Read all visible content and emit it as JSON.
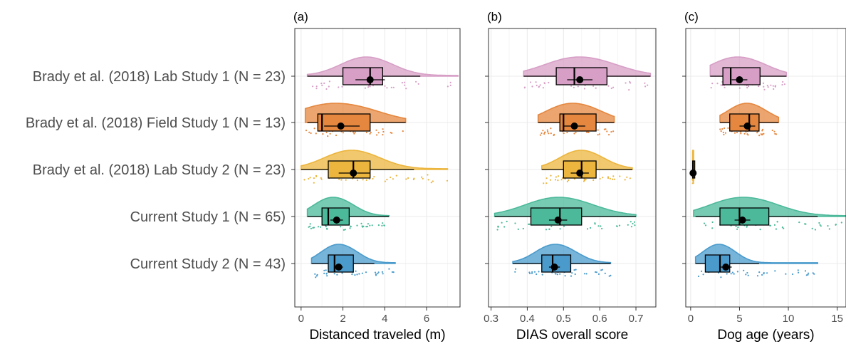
{
  "chart_data": {
    "type": "raincloud",
    "rows": [
      {
        "label": "Brady et al. (2018) Lab Study 1 (N = 23)",
        "color": "#d79fc6"
      },
      {
        "label": "Brady et al. (2018) Field Study 1 (N = 13)",
        "color": "#e5873f"
      },
      {
        "label": "Brady et al. (2018) Lab Study 2 (N = 23)",
        "color": "#ecb53d"
      },
      {
        "label": "Current Study 1 (N = 65)",
        "color": "#4bb99a"
      },
      {
        "label": "Current Study 2 (N = 43)",
        "color": "#4a9bcc"
      }
    ],
    "panels": [
      {
        "tag": "(a)",
        "xlabel": "Distanced traveled (m)",
        "xlim": [
          -0.3,
          7.6
        ],
        "ticks": [
          0,
          2,
          4,
          6
        ],
        "box": [
          {
            "wlo": 0.3,
            "q1": 2.0,
            "med": 3.3,
            "q3": 3.9,
            "whi": 5.7,
            "mean": 3.3,
            "cilo": 2.6,
            "cihi": 4.0,
            "dmin": 0.3,
            "dmax": 7.5
          },
          {
            "wlo": 0.3,
            "q1": 0.8,
            "med": 1.0,
            "q3": 3.3,
            "whi": 5.0,
            "mean": 1.9,
            "cilo": 1.1,
            "cihi": 2.8,
            "dmin": 0.2,
            "dmax": 5.0
          },
          {
            "wlo": 0.0,
            "q1": 1.3,
            "med": 2.5,
            "q3": 3.3,
            "whi": 5.4,
            "mean": 2.5,
            "cilo": 1.8,
            "cihi": 3.3,
            "dmin": 0.0,
            "dmax": 7.0
          },
          {
            "wlo": 0.3,
            "q1": 1.0,
            "med": 1.3,
            "q3": 2.3,
            "whi": 4.2,
            "mean": 1.7,
            "cilo": 1.4,
            "cihi": 2.0,
            "dmin": 0.3,
            "dmax": 4.2
          },
          {
            "wlo": 0.5,
            "q1": 1.3,
            "med": 1.6,
            "q3": 2.5,
            "whi": 3.5,
            "mean": 1.8,
            "cilo": 1.6,
            "cihi": 2.0,
            "dmin": 0.5,
            "dmax": 4.5
          }
        ]
      },
      {
        "tag": "(b)",
        "xlabel": "DIAS overall score",
        "xlim": [
          0.293,
          0.755
        ],
        "ticks": [
          0.3,
          0.4,
          0.5,
          0.6,
          0.7
        ],
        "box": [
          {
            "wlo": 0.39,
            "q1": 0.48,
            "med": 0.53,
            "q3": 0.62,
            "whi": 0.74,
            "mean": 0.545,
            "cilo": 0.51,
            "cihi": 0.58,
            "dmin": 0.39,
            "dmax": 0.74
          },
          {
            "wlo": 0.43,
            "q1": 0.49,
            "med": 0.5,
            "q3": 0.59,
            "whi": 0.64,
            "mean": 0.53,
            "cilo": 0.5,
            "cihi": 0.56,
            "dmin": 0.43,
            "dmax": 0.64
          },
          {
            "wlo": 0.44,
            "q1": 0.5,
            "med": 0.55,
            "q3": 0.59,
            "whi": 0.69,
            "mean": 0.545,
            "cilo": 0.52,
            "cihi": 0.57,
            "dmin": 0.44,
            "dmax": 0.69
          },
          {
            "wlo": 0.31,
            "q1": 0.41,
            "med": 0.49,
            "q3": 0.55,
            "whi": 0.7,
            "mean": 0.485,
            "cilo": 0.46,
            "cihi": 0.51,
            "dmin": 0.31,
            "dmax": 0.7
          },
          {
            "wlo": 0.36,
            "q1": 0.44,
            "med": 0.47,
            "q3": 0.52,
            "whi": 0.63,
            "mean": 0.475,
            "cilo": 0.46,
            "cihi": 0.49,
            "dmin": 0.36,
            "dmax": 0.63
          }
        ]
      },
      {
        "tag": "(c)",
        "xlabel": "Dog age (years)",
        "xlim": [
          -0.5,
          15.9
        ],
        "ticks": [
          0,
          5,
          10,
          15
        ],
        "box": [
          {
            "wlo": 2.0,
            "q1": 3.3,
            "med": 4.1,
            "q3": 7.1,
            "whi": 9.8,
            "mean": 5.0,
            "cilo": 4.2,
            "cihi": 5.8,
            "dmin": 2.0,
            "dmax": 9.8
          },
          {
            "wlo": 3.0,
            "q1": 4.0,
            "med": 6.0,
            "q3": 7.0,
            "whi": 9.0,
            "mean": 5.8,
            "cilo": 5.0,
            "cihi": 6.6,
            "dmin": 3.0,
            "dmax": 9.0
          },
          {
            "wlo": 0.2,
            "q1": 0.2,
            "med": 0.25,
            "q3": 0.3,
            "whi": 0.3,
            "mean": 0.25,
            "cilo": 0.22,
            "cihi": 0.28,
            "dmin": 0.2,
            "dmax": 0.3
          },
          {
            "wlo": 0.5,
            "q1": 3.0,
            "med": 5.0,
            "q3": 8.0,
            "whi": 13.0,
            "mean": 5.3,
            "cilo": 4.5,
            "cihi": 6.1,
            "dmin": 0.3,
            "dmax": 16.0
          },
          {
            "wlo": 0.5,
            "q1": 1.5,
            "med": 3.0,
            "q3": 4.0,
            "whi": 7.0,
            "mean": 3.6,
            "cilo": 3.0,
            "cihi": 4.2,
            "dmin": 0.5,
            "dmax": 13.0
          }
        ]
      }
    ]
  }
}
